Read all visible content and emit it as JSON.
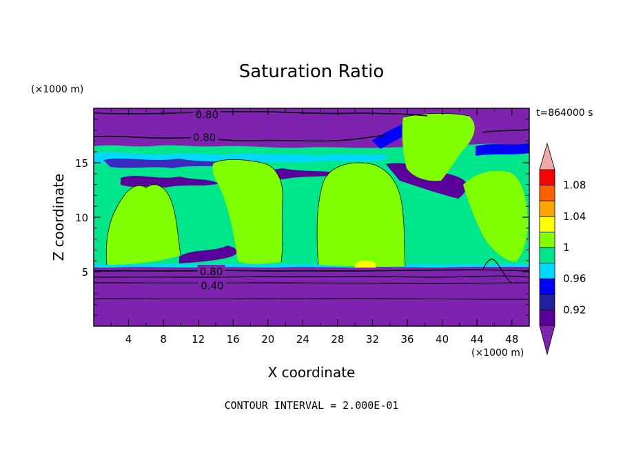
{
  "chart_data": {
    "type": "heatmap",
    "title": "Saturation Ratio",
    "xlabel": "X coordinate",
    "ylabel": "Z coordinate",
    "x_unit": "(×1000 m)",
    "y_unit": "(×1000 m)",
    "time_label": "t=864000 s",
    "footer": "CONTOUR INTERVAL = 2.000E-01",
    "xlim": [
      0,
      50
    ],
    "ylim": [
      0,
      20
    ],
    "x_ticks": [
      4,
      8,
      12,
      16,
      20,
      24,
      28,
      32,
      36,
      40,
      44,
      48
    ],
    "y_ticks": [
      5,
      10,
      15
    ],
    "colorbar": {
      "levels": [
        0.9,
        0.92,
        0.94,
        0.96,
        0.98,
        1.0,
        1.02,
        1.04,
        1.06,
        1.08,
        1.1
      ],
      "tick_labels": [
        "0.92",
        "0.96",
        "1",
        "1.04",
        "1.08"
      ],
      "colors": [
        "#5a009a",
        "#2020a0",
        "#0000ff",
        "#00d8ff",
        "#00e68c",
        "#80ff00",
        "#ffff00",
        "#ffa500",
        "#ff6000",
        "#ff0000",
        "#f0a8a8"
      ],
      "under_color": "#7e22b0",
      "over_color": "#f0a8a8"
    },
    "contour_labels": [
      {
        "text": "0.80",
        "x": 13.0,
        "y": 19.4
      },
      {
        "text": "0.80",
        "x": 12.7,
        "y": 17.3
      },
      {
        "text": "0.80",
        "x": 13.5,
        "y": 5.0
      },
      {
        "text": "0.40",
        "x": 13.6,
        "y": 3.7
      }
    ]
  }
}
